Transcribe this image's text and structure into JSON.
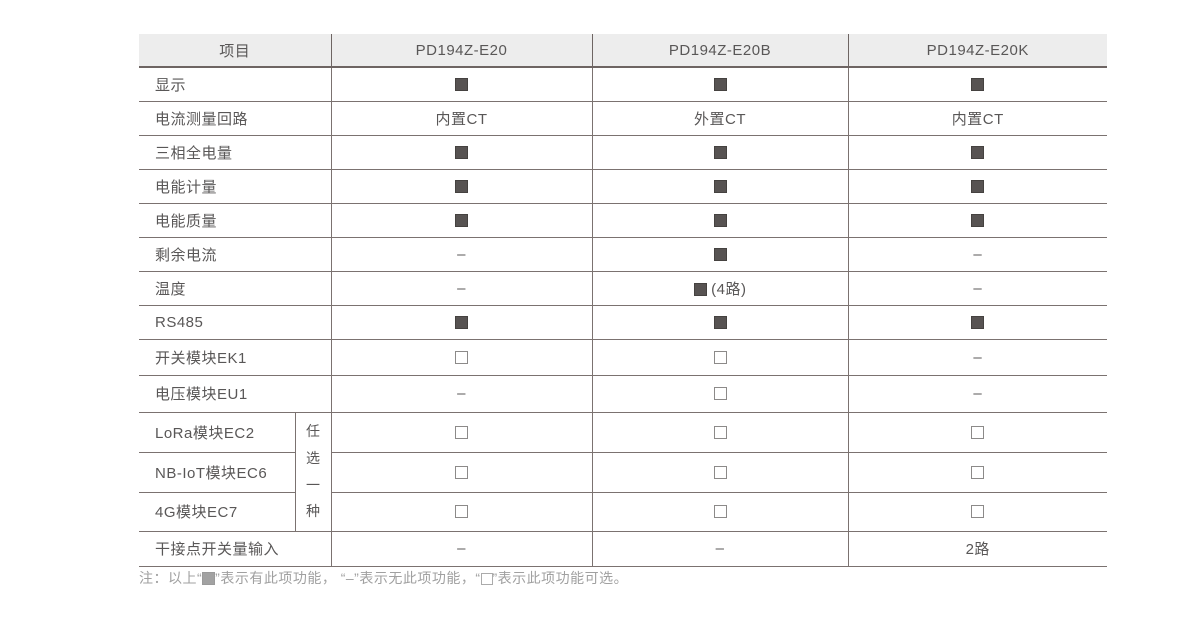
{
  "table": {
    "header": {
      "item": "项目",
      "products": [
        "PD194Z-E20",
        "PD194Z-E20B",
        "PD194Z-E20K"
      ]
    },
    "option_group_label": "任选一种",
    "rows": [
      {
        "label": "显示",
        "cells": [
          "■",
          "■",
          "■"
        ]
      },
      {
        "label": "电流测量回路",
        "cells": [
          "内置CT",
          "外置CT",
          "内置CT"
        ]
      },
      {
        "label": "三相全电量",
        "cells": [
          "■",
          "■",
          "■"
        ]
      },
      {
        "label": "电能计量",
        "cells": [
          "■",
          "■",
          "■"
        ]
      },
      {
        "label": "电能质量",
        "cells": [
          "■",
          "■",
          "■"
        ]
      },
      {
        "label": "剩余电流",
        "cells": [
          "–",
          "■",
          "–"
        ]
      },
      {
        "label": "温度",
        "cells": [
          "–",
          "■ (4路)",
          "–"
        ]
      },
      {
        "label": "RS485",
        "cells": [
          "■",
          "■",
          "■"
        ]
      },
      {
        "label": "开关模块EK1",
        "cells": [
          "□",
          "□",
          "–"
        ]
      },
      {
        "label": "电压模块EU1",
        "cells": [
          "–",
          "□",
          "–"
        ]
      },
      {
        "label": "LoRa模块EC2",
        "group": "start",
        "cells": [
          "□",
          "□",
          "□"
        ]
      },
      {
        "label": "NB-IoT模块EC6",
        "group": "mid",
        "cells": [
          "□",
          "□",
          "□"
        ]
      },
      {
        "label": "4G模块EC7",
        "group": "end",
        "cells": [
          "□",
          "□",
          "□"
        ]
      },
      {
        "label": "干接点开关量输入",
        "cells": [
          "–",
          "–",
          "2路"
        ]
      }
    ]
  },
  "note": "注：以上“■”表示有此项功能， “–”表示无此项功能，“□”表示此项功能可选。",
  "colors": {
    "header_bg": "#ededed",
    "line": "#7b7270",
    "text": "#595757",
    "filled_square": "#575352",
    "note_text": "#a0a0a0"
  }
}
